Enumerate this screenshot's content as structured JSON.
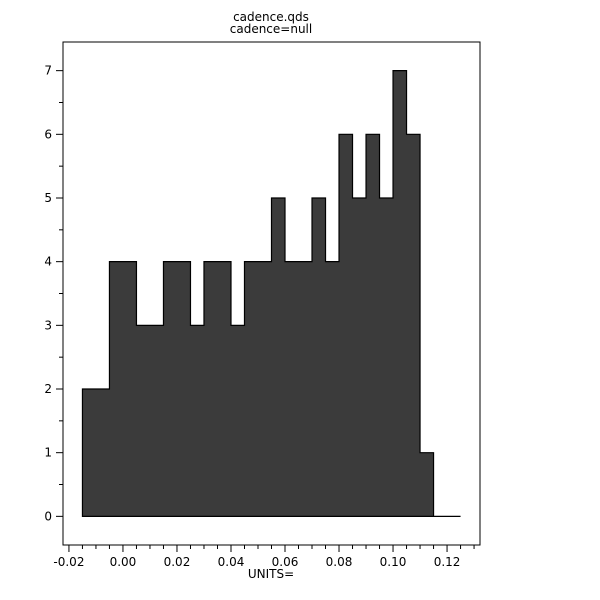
{
  "chart_data": {
    "type": "bar",
    "subtype": "histogram",
    "title": "cadence.qds",
    "subtitle": "cadence=null",
    "xlabel": "UNITS=",
    "ylabel": "",
    "bin_start": -0.015,
    "bin_width": 0.005,
    "counts": [
      2,
      2,
      4,
      4,
      3,
      3,
      4,
      4,
      3,
      4,
      4,
      3,
      4,
      4,
      5,
      4,
      4,
      5,
      4,
      6,
      5,
      6,
      5,
      7,
      6,
      1,
      0,
      0
    ],
    "xlim": [
      -0.0222,
      0.1322
    ],
    "ylim": [
      -0.45,
      7.45
    ],
    "x_ticks": [
      -0.02,
      0.0,
      0.02,
      0.04,
      0.06,
      0.08,
      0.1,
      0.12
    ],
    "x_tick_labels": [
      "-0.02",
      "0.00",
      "0.02",
      "0.04",
      "0.06",
      "0.08",
      "0.10",
      "0.12"
    ],
    "x_minor_step": 0.005,
    "y_ticks": [
      0,
      1,
      2,
      3,
      4,
      5,
      6,
      7
    ],
    "y_tick_labels": [
      "0",
      "1",
      "2",
      "3",
      "4",
      "5",
      "6",
      "7"
    ],
    "y_minor_step": 0.5,
    "grid": false,
    "legend": "none",
    "bar_color": "#3b3b3b",
    "bar_edge_color": "#000000",
    "frame_color": "#000000",
    "background_color": "#ffffff"
  }
}
